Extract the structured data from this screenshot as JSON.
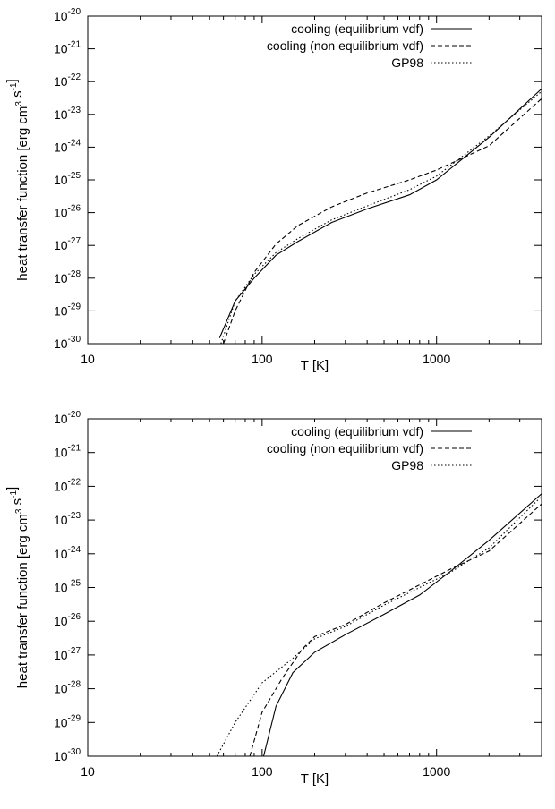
{
  "chart_data": [
    {
      "type": "line",
      "xlabel": "T [K]",
      "ylabel": "heat transfer function [erg cm^3 s^-1]",
      "xscale": "log",
      "yscale": "log",
      "xlim": [
        10,
        4000
      ],
      "ylim": [
        1e-30,
        1e-20
      ],
      "x_ticks": [
        {
          "value": 10,
          "label": "10"
        },
        {
          "value": 100,
          "label": "100"
        },
        {
          "value": 1000,
          "label": "1000"
        }
      ],
      "y_ticks": [
        {
          "value": 1e-20,
          "base": "10",
          "exp": "-20"
        },
        {
          "value": 1e-21,
          "base": "10",
          "exp": "-21"
        },
        {
          "value": 1e-22,
          "base": "10",
          "exp": "-22"
        },
        {
          "value": 1e-23,
          "base": "10",
          "exp": "-23"
        },
        {
          "value": 1e-24,
          "base": "10",
          "exp": "-24"
        },
        {
          "value": 1e-25,
          "base": "10",
          "exp": "-25"
        },
        {
          "value": 1e-26,
          "base": "10",
          "exp": "-26"
        },
        {
          "value": 1e-27,
          "base": "10",
          "exp": "-27"
        },
        {
          "value": 1e-28,
          "base": "10",
          "exp": "-28"
        },
        {
          "value": 1e-29,
          "base": "10",
          "exp": "-29"
        },
        {
          "value": 1e-30,
          "base": "10",
          "exp": "-30"
        }
      ],
      "legend_position": "top-right",
      "series": [
        {
          "name": "cooling (equilibrium vdf)",
          "style": "solid",
          "x": [
            57,
            70,
            90,
            120,
            160,
            250,
            400,
            700,
            1000,
            2000,
            4000
          ],
          "y": [
            1.5e-30,
            2e-29,
            1e-28,
            5e-28,
            1.3e-27,
            5e-27,
            1.3e-26,
            3.5e-26,
            1e-25,
            2e-24,
            6e-23
          ]
        },
        {
          "name": "cooling (non equilibrium vdf)",
          "style": "dashed",
          "x": [
            60,
            70,
            90,
            120,
            160,
            250,
            400,
            700,
            1000,
            2000,
            4000
          ],
          "y": [
            1e-30,
            1e-29,
            1.5e-28,
            1.1e-27,
            4e-27,
            1.5e-26,
            4e-26,
            1e-25,
            2e-25,
            1.1e-24,
            3e-23
          ]
        },
        {
          "name": "GP98",
          "style": "dotted",
          "x": [
            58,
            70,
            90,
            120,
            160,
            250,
            400,
            700,
            1000,
            2000,
            4000
          ],
          "y": [
            1e-30,
            2e-29,
            1.3e-28,
            6e-28,
            1.6e-27,
            6e-27,
            1.6e-26,
            5e-26,
            1.3e-25,
            2.2e-24,
            5e-23
          ]
        }
      ]
    },
    {
      "type": "line",
      "xlabel": "T [K]",
      "ylabel": "heat transfer function [erg cm^3 s^-1]",
      "xscale": "log",
      "yscale": "log",
      "xlim": [
        10,
        4000
      ],
      "ylim": [
        1e-30,
        1e-20
      ],
      "x_ticks": [
        {
          "value": 10,
          "label": "10"
        },
        {
          "value": 100,
          "label": "100"
        },
        {
          "value": 1000,
          "label": "1000"
        }
      ],
      "y_ticks": [
        {
          "value": 1e-20,
          "base": "10",
          "exp": "-20"
        },
        {
          "value": 1e-21,
          "base": "10",
          "exp": "-21"
        },
        {
          "value": 1e-22,
          "base": "10",
          "exp": "-22"
        },
        {
          "value": 1e-23,
          "base": "10",
          "exp": "-23"
        },
        {
          "value": 1e-24,
          "base": "10",
          "exp": "-24"
        },
        {
          "value": 1e-25,
          "base": "10",
          "exp": "-25"
        },
        {
          "value": 1e-26,
          "base": "10",
          "exp": "-26"
        },
        {
          "value": 1e-27,
          "base": "10",
          "exp": "-27"
        },
        {
          "value": 1e-28,
          "base": "10",
          "exp": "-28"
        },
        {
          "value": 1e-29,
          "base": "10",
          "exp": "-29"
        },
        {
          "value": 1e-30,
          "base": "10",
          "exp": "-30"
        }
      ],
      "legend_position": "top-right",
      "series": [
        {
          "name": "cooling (equilibrium vdf)",
          "style": "solid",
          "x": [
            102,
            120,
            150,
            200,
            300,
            500,
            800,
            1200,
            2000,
            4000
          ],
          "y": [
            1e-30,
            3e-29,
            3e-28,
            1.2e-27,
            4e-27,
            1.6e-26,
            6e-26,
            3e-25,
            2.5e-24,
            6e-23
          ]
        },
        {
          "name": "cooling (non equilibrium vdf)",
          "style": "dashed",
          "x": [
            85,
            100,
            130,
            170,
            200,
            300,
            500,
            800,
            1200,
            2000,
            4000
          ],
          "y": [
            1e-30,
            2e-29,
            2e-28,
            1.5e-27,
            3.5e-27,
            8e-27,
            3.5e-26,
            1.2e-25,
            3.5e-25,
            1.2e-24,
            3e-23
          ]
        },
        {
          "name": "GP98",
          "style": "dotted",
          "x": [
            55,
            70,
            100,
            150,
            200,
            300,
            500,
            800,
            1200,
            2000,
            4000
          ],
          "y": [
            1e-30,
            1e-29,
            1.5e-28,
            8e-28,
            3e-27,
            7e-27,
            3e-26,
            1e-25,
            2.8e-25,
            1.5e-24,
            5e-23
          ]
        }
      ]
    }
  ]
}
